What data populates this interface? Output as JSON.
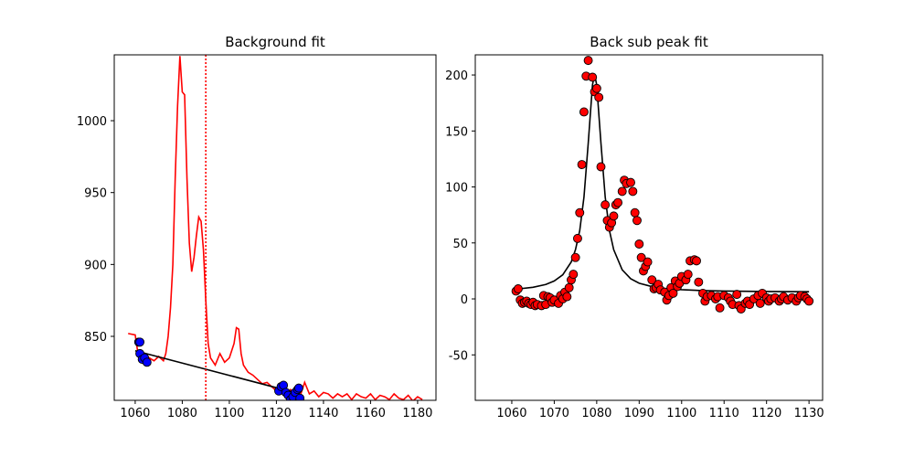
{
  "chart_data": [
    {
      "type": "line",
      "title": "Background fit",
      "xlim": [
        1051.1,
        1187.8
      ],
      "ylim": [
        805.5,
        1045.8
      ],
      "xticks": [
        1060,
        1080,
        1100,
        1120,
        1140,
        1160,
        1180
      ],
      "yticks": [
        850,
        900,
        950,
        1000
      ],
      "series": [
        {
          "type": "line",
          "color": "#ff0000",
          "x": [
            1057,
            1060,
            1061,
            1062,
            1064,
            1066,
            1068,
            1070,
            1072,
            1073,
            1074,
            1075,
            1076,
            1077,
            1078,
            1079,
            1080,
            1081,
            1082,
            1083,
            1084,
            1085,
            1086,
            1087,
            1088,
            1089,
            1090,
            1091,
            1092,
            1094,
            1096,
            1098,
            1100,
            1102,
            1103,
            1104,
            1105,
            1106,
            1108,
            1110,
            1112,
            1114,
            1116,
            1118,
            1120,
            1122,
            1124,
            1126,
            1128,
            1130,
            1132,
            1134,
            1136,
            1138,
            1140,
            1142,
            1144,
            1146,
            1148,
            1150,
            1152,
            1154,
            1156,
            1158,
            1160,
            1162,
            1164,
            1166,
            1168,
            1170,
            1172,
            1174,
            1176,
            1178,
            1180,
            1182
          ],
          "values": [
            852,
            851,
            840,
            836,
            838,
            835,
            833,
            836,
            833,
            838,
            850,
            870,
            900,
            960,
            1010,
            1045,
            1020,
            1018,
            960,
            915,
            895,
            905,
            920,
            933,
            930,
            910,
            875,
            845,
            835,
            830,
            838,
            832,
            835,
            845,
            856,
            855,
            838,
            830,
            825,
            823,
            820,
            817,
            818,
            815,
            812,
            814,
            810,
            813,
            810,
            808,
            818,
            810,
            812,
            808,
            811,
            810,
            807,
            810,
            808,
            810,
            806,
            810,
            808,
            807,
            810,
            806,
            809,
            808,
            806,
            810,
            807,
            806,
            809,
            805,
            808,
            806
          ]
        },
        {
          "type": "line",
          "color": "#000000",
          "x": [
            1060,
            1130
          ],
          "values": [
            840,
            810
          ]
        },
        {
          "type": "scatter",
          "color": "#0000ff",
          "edgecolor": "#000000",
          "x": [
            1061.5,
            1062,
            1062,
            1063,
            1064,
            1065,
            1121,
            1122,
            1123,
            1124,
            1125,
            1126,
            1127,
            1128,
            1129,
            1129.5,
            1130
          ],
          "values": [
            846,
            846,
            838,
            834,
            835,
            832,
            812,
            815,
            816,
            811,
            809,
            806,
            808,
            811,
            813,
            814,
            807
          ]
        },
        {
          "type": "vline",
          "color": "#ff0000",
          "x": 1090
        }
      ]
    },
    {
      "type": "line",
      "title": "Back sub peak fit",
      "xlim": [
        1051.4,
        1133.2
      ],
      "ylim": [
        -90.6,
        218
      ],
      "xticks": [
        1060,
        1070,
        1080,
        1090,
        1100,
        1110,
        1120,
        1130
      ],
      "yticks": [
        -50,
        0,
        50,
        100,
        150,
        200
      ],
      "series": [
        {
          "type": "line",
          "color": "#000000",
          "x": [
            1061,
            1065,
            1068,
            1070,
            1072,
            1074,
            1075,
            1076,
            1077,
            1078,
            1079,
            1079.5,
            1080,
            1081,
            1082,
            1083,
            1084,
            1086,
            1088,
            1090,
            1093,
            1096,
            1100,
            1105,
            1110,
            1120,
            1130
          ],
          "values": [
            8.7,
            10.4,
            12.9,
            16,
            21.5,
            33,
            44,
            61,
            91,
            139,
            191,
            201,
            191,
            139,
            91,
            61,
            44,
            26,
            18,
            14,
            11,
            9.4,
            8.2,
            7.4,
            7,
            6.6,
            6.4
          ]
        },
        {
          "type": "scatter",
          "color": "#ff0000",
          "edgecolor": "#000000",
          "x": [
            1061,
            1061.5,
            1062,
            1062.5,
            1063,
            1063.5,
            1064,
            1064.5,
            1065,
            1065.5,
            1066,
            1067,
            1067.5,
            1068,
            1068.5,
            1069,
            1069.5,
            1070,
            1071,
            1071.5,
            1072,
            1072.5,
            1073,
            1073.5,
            1074,
            1074.5,
            1075,
            1075.5,
            1076,
            1076.5,
            1077,
            1077.5,
            1078,
            1079,
            1079.5,
            1080,
            1080.5,
            1081,
            1082,
            1082.5,
            1083,
            1083.5,
            1084,
            1084.5,
            1085,
            1086,
            1086.5,
            1087,
            1088,
            1088.5,
            1089,
            1089.5,
            1090,
            1090.5,
            1091,
            1091.5,
            1092,
            1093,
            1093.5,
            1094,
            1094.5,
            1095,
            1096,
            1096.5,
            1097,
            1097.5,
            1098,
            1098.5,
            1099,
            1099.5,
            1100,
            1101,
            1101.5,
            1102,
            1103,
            1103.5,
            1104,
            1105,
            1105.5,
            1106,
            1107,
            1108,
            1108.5,
            1109,
            1110,
            1111,
            1111.5,
            1112,
            1113,
            1113.5,
            1114,
            1115,
            1115.5,
            1116,
            1117,
            1118,
            1118.5,
            1119,
            1120,
            1120.5,
            1121,
            1122,
            1123,
            1123.5,
            1124,
            1125,
            1126,
            1127,
            1127.5,
            1128,
            1129,
            1129.5,
            1130
          ],
          "values": [
            7,
            9,
            -1,
            -4,
            -3,
            -2,
            -4,
            -5,
            -3,
            -6,
            -5,
            -6,
            3,
            -5,
            2,
            1,
            -3,
            -1,
            -4,
            3,
            0,
            6,
            2,
            10,
            17,
            22,
            37,
            54,
            77,
            120,
            167,
            199,
            213,
            198,
            185,
            188,
            180,
            118,
            84,
            70,
            64,
            68,
            74,
            84,
            86,
            96,
            106,
            103,
            104,
            96,
            77,
            70,
            49,
            37,
            25,
            29,
            33,
            17,
            9,
            10,
            13,
            8,
            6,
            -1,
            3,
            10,
            5,
            16,
            11,
            14,
            20,
            17,
            22,
            34,
            35,
            34,
            15,
            5,
            -2,
            2,
            3,
            0,
            2,
            -8,
            3,
            1,
            -2,
            -5,
            4,
            -6,
            -9,
            -4,
            -2,
            -5,
            0,
            3,
            -4,
            5,
            1,
            -2,
            0,
            1,
            -2,
            0,
            2,
            -1,
            1,
            -2,
            1,
            3,
            2,
            0,
            -2
          ]
        }
      ]
    }
  ]
}
